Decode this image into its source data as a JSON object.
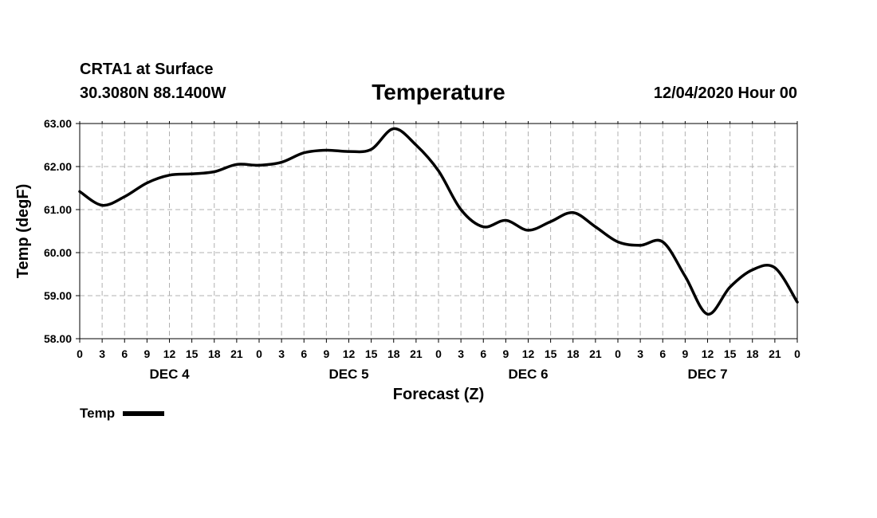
{
  "header": {
    "station": "CRTA1 at Surface",
    "coords": "30.3080N 88.1400W",
    "title": "Temperature",
    "date": "12/04/2020 Hour 00"
  },
  "legend": {
    "label": "Temp"
  },
  "chart_data": {
    "type": "line",
    "title": "Temperature",
    "xlabel": "Forecast (Z)",
    "ylabel": "Temp (degF)",
    "xlim": [
      0,
      96
    ],
    "ylim": [
      58,
      63
    ],
    "grid": true,
    "legend": "bottom-left",
    "y_ticks": [
      "58.00",
      "59.00",
      "60.00",
      "61.00",
      "62.00",
      "63.00"
    ],
    "y_tick_values": [
      58,
      59,
      60,
      61,
      62,
      63
    ],
    "x_tick_labels": [
      "0",
      "3",
      "6",
      "9",
      "12",
      "15",
      "18",
      "21",
      "0",
      "3",
      "6",
      "9",
      "12",
      "15",
      "18",
      "21",
      "0",
      "3",
      "6",
      "9",
      "12",
      "15",
      "18",
      "21",
      "0",
      "3",
      "6",
      "9",
      "12",
      "15",
      "18",
      "21",
      "0"
    ],
    "day_labels": [
      {
        "label": "DEC 4",
        "center_hour": 12
      },
      {
        "label": "DEC 5",
        "center_hour": 36
      },
      {
        "label": "DEC 6",
        "center_hour": 60
      },
      {
        "label": "DEC 7",
        "center_hour": 84
      }
    ],
    "series": [
      {
        "name": "Temp",
        "color": "#000000",
        "x": [
          0,
          3,
          6,
          9,
          12,
          15,
          18,
          21,
          24,
          27,
          30,
          33,
          36,
          39,
          42,
          45,
          48,
          51,
          54,
          57,
          60,
          63,
          66,
          69,
          72,
          75,
          78,
          81,
          84,
          87,
          90,
          93,
          96
        ],
        "values": [
          61.42,
          61.1,
          61.3,
          61.62,
          61.8,
          61.83,
          61.88,
          62.05,
          62.03,
          62.1,
          62.32,
          62.38,
          62.35,
          62.4,
          62.88,
          62.5,
          61.9,
          61.0,
          60.6,
          60.75,
          60.52,
          60.72,
          60.93,
          60.6,
          60.25,
          60.17,
          60.25,
          59.45,
          58.57,
          59.2,
          59.6,
          59.65,
          58.85
        ]
      }
    ]
  }
}
